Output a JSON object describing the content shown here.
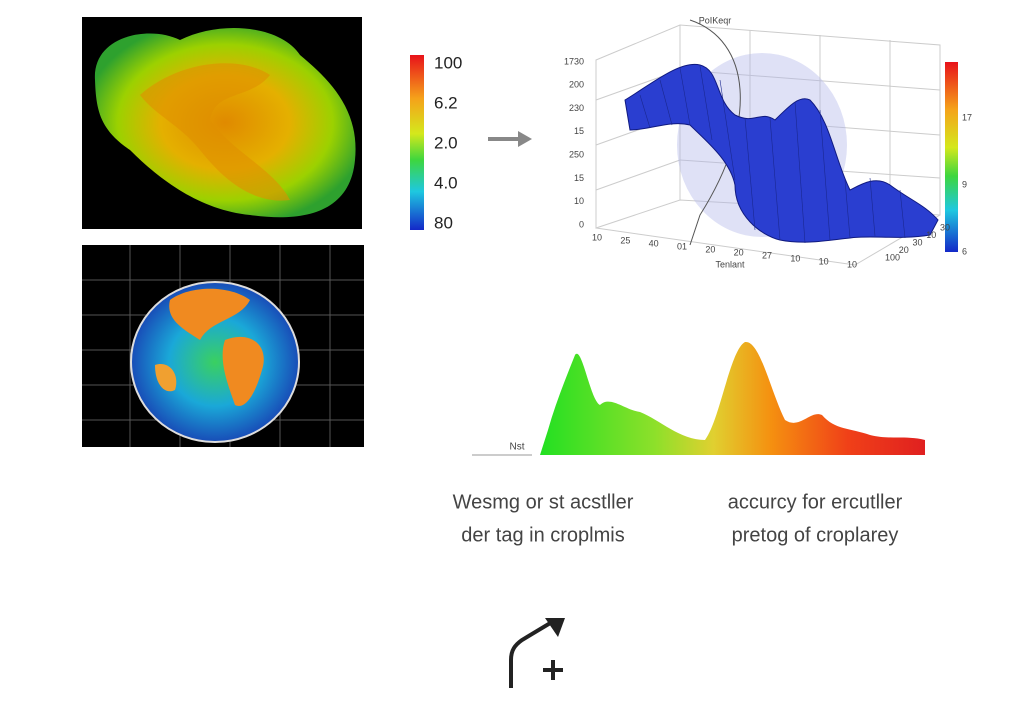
{
  "heatmap": {
    "colorbar_labels": [
      "100",
      "6.2",
      "2.0",
      "4.0",
      "80"
    ]
  },
  "surface_plot": {
    "title": "PoIKeqr",
    "y_labels": [
      "1730",
      "200",
      "230",
      "15",
      "250",
      "15",
      "10",
      "0"
    ],
    "x_labels": [
      "10",
      "25",
      "40",
      "01",
      "20",
      "20",
      "27",
      "10",
      "10",
      "10"
    ],
    "x_label": "Tenlant",
    "depth_labels": [
      "100",
      "20",
      "30",
      "10",
      "30"
    ],
    "colorbar_labels": [
      "17",
      "9",
      "6"
    ]
  },
  "density_plot": {
    "label": "Nst"
  },
  "captions": [
    {
      "lines": [
        "Wesmg or st acstller",
        "der tag in croplmis"
      ]
    },
    {
      "lines": [
        "accurcy for ercutller",
        "pretog of croplarey"
      ]
    }
  ]
}
